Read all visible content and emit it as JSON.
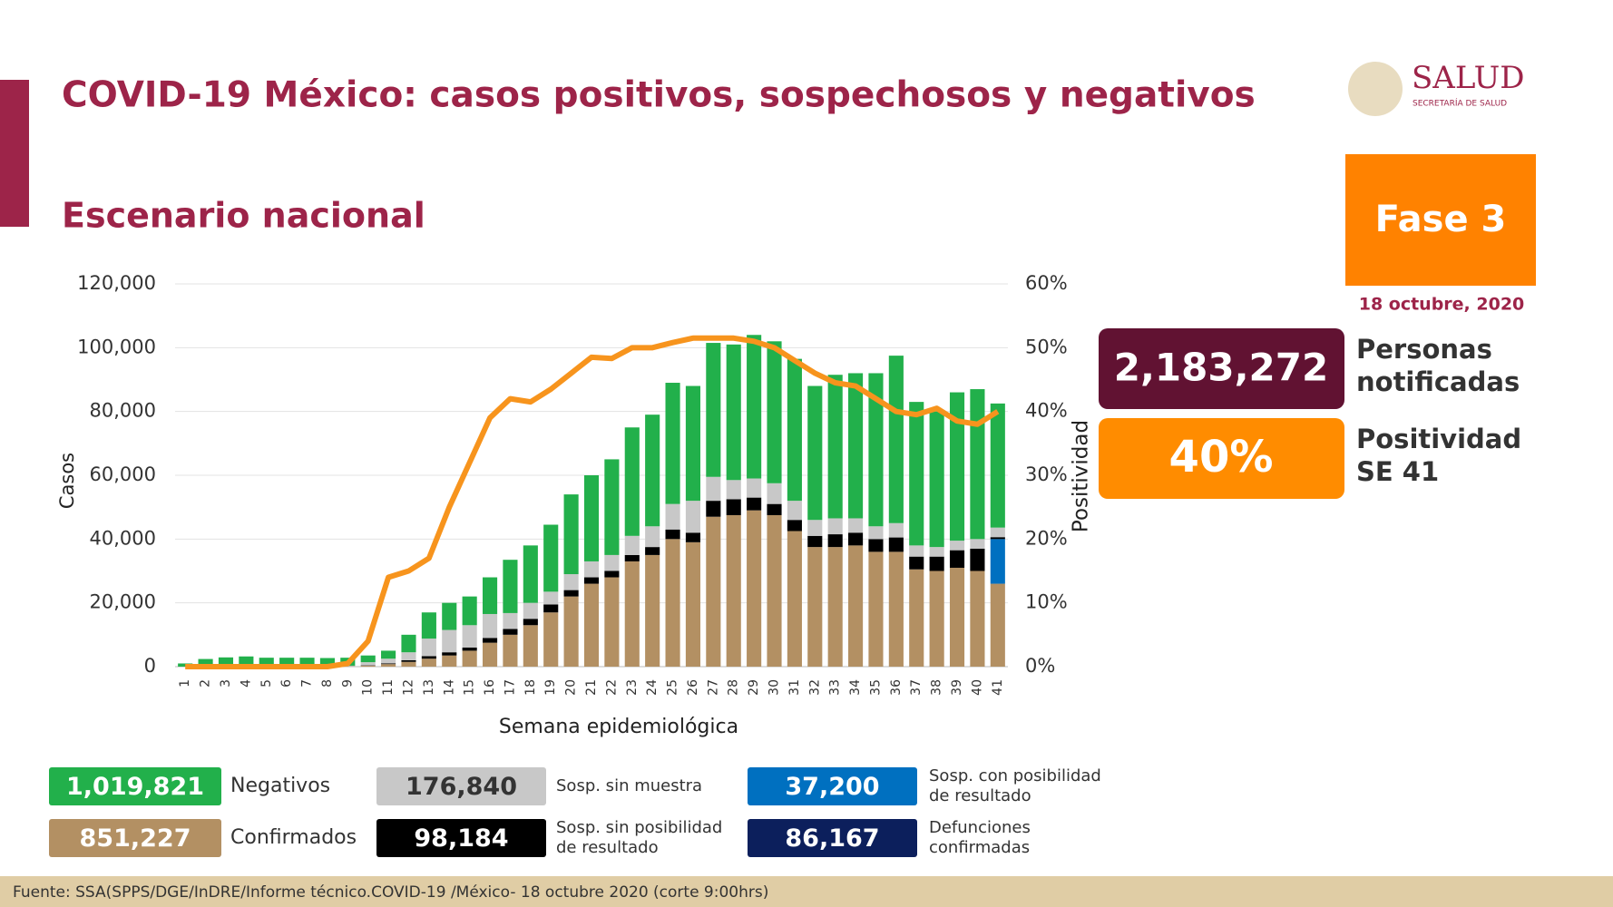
{
  "header": {
    "title": "COVID-19 México: casos positivos, sospechosos y negativos",
    "subtitle": "Escenario nacional",
    "logo": "SALUD",
    "logo_sub": "SECRETARÍA DE SALUD",
    "phase": "Fase 3",
    "date": "18 octubre, 2020"
  },
  "kpis": [
    {
      "value": "2,183,272",
      "label": [
        "Personas",
        "notificadas"
      ],
      "color": "#611232"
    },
    {
      "value": "40%",
      "label": [
        "Positividad",
        "SE 41"
      ],
      "color": "#ff8c00"
    }
  ],
  "extra_totals": [
    {
      "name": "Defunciones confirmadas",
      "total": "86,167",
      "color": "#0c1f5c"
    }
  ],
  "footer": "Fuente: SSA(SPPS/DGE/InDRE/Informe técnico.COVID-19 /México- 18 octubre 2020 (corte 9:00hrs)",
  "chart_data": {
    "type": "bar",
    "stacked": true,
    "categories": [
      "1",
      "2",
      "3",
      "4",
      "5",
      "6",
      "7",
      "8",
      "9",
      "10",
      "11",
      "12",
      "13",
      "14",
      "15",
      "16",
      "17",
      "18",
      "19",
      "20",
      "21",
      "22",
      "23",
      "24",
      "25",
      "26",
      "27",
      "28",
      "29",
      "30",
      "31",
      "32",
      "33",
      "34",
      "35",
      "36",
      "37",
      "38",
      "39",
      "40",
      "41"
    ],
    "xlabel": "Semana epidemiológica",
    "ylabel": "Casos",
    "y2label": "Positividad",
    "ylim": [
      0,
      120000
    ],
    "yticks": [
      0,
      {
        "value": 20000,
        "label": "20,000"
      },
      {
        "value": 40000,
        "label": "40,000"
      },
      {
        "value": 60000,
        "label": "60,000"
      },
      {
        "value": 80000,
        "label": "80,000"
      },
      {
        "value": 100000,
        "label": "100,000"
      },
      {
        "value": 120000,
        "label": "120,000"
      }
    ],
    "y2lim": [
      0,
      60
    ],
    "y2ticks": [
      {
        "value": 0,
        "label": "0%"
      },
      {
        "value": 10,
        "label": "10%"
      },
      {
        "value": 20,
        "label": "20%"
      },
      {
        "value": 30,
        "label": "30%"
      },
      {
        "value": 40,
        "label": "40%"
      },
      {
        "value": 50,
        "label": "50%"
      },
      {
        "value": 60,
        "label": "60%"
      }
    ],
    "series": [
      {
        "name": "Confirmados",
        "total": "851,227",
        "color": "#b39063",
        "values": [
          0,
          0,
          0,
          0,
          0,
          0,
          0,
          0,
          100,
          300,
          800,
          1500,
          2500,
          3500,
          5000,
          7500,
          10000,
          13000,
          17000,
          22000,
          26000,
          28000,
          33000,
          35000,
          40000,
          39000,
          47000,
          47500,
          49000,
          47500,
          42500,
          37500,
          37500,
          38000,
          36000,
          36000,
          30500,
          30000,
          31000,
          30000,
          26000
        ]
      },
      {
        "name": "Sosp. con posibilidad de resultado",
        "total": "37,200",
        "color": "#0070c0",
        "values": [
          0,
          0,
          0,
          0,
          0,
          0,
          0,
          0,
          0,
          0,
          0,
          0,
          0,
          0,
          0,
          0,
          0,
          0,
          0,
          0,
          0,
          0,
          0,
          0,
          0,
          0,
          0,
          0,
          0,
          0,
          0,
          0,
          0,
          0,
          0,
          0,
          0,
          0,
          0,
          0,
          14000
        ]
      },
      {
        "name": "Sosp. sin posibilidad de resultado",
        "total": "98,184",
        "color": "#000000",
        "values": [
          0,
          0,
          0,
          0,
          0,
          0,
          0,
          0,
          0,
          100,
          200,
          500,
          800,
          1000,
          1000,
          1500,
          1800,
          2000,
          2500,
          2000,
          2000,
          2000,
          2000,
          2500,
          3000,
          3000,
          5000,
          5000,
          4000,
          3500,
          3500,
          3500,
          4000,
          4000,
          4000,
          4500,
          4000,
          4500,
          5500,
          7000,
          600
        ]
      },
      {
        "name": "Sosp. sin muestra",
        "total": "176,840",
        "color": "#c8c8c8",
        "values": [
          0,
          0,
          100,
          100,
          100,
          100,
          100,
          100,
          200,
          1000,
          1500,
          2500,
          5500,
          7000,
          7000,
          7500,
          5000,
          5000,
          4000,
          5000,
          5000,
          5000,
          6000,
          6500,
          8000,
          10000,
          7500,
          6000,
          6000,
          6500,
          6000,
          5000,
          5000,
          4500,
          4000,
          4500,
          3500,
          3000,
          3000,
          3000,
          3000
        ]
      },
      {
        "name": "Negativos",
        "total": "1,019,821",
        "color": "#22b04b",
        "values": [
          1000,
          2400,
          2800,
          3100,
          2700,
          2700,
          2700,
          2600,
          2500,
          2100,
          2500,
          5500,
          8200,
          8500,
          9000,
          11500,
          16700,
          18000,
          21000,
          25000,
          27000,
          30000,
          34000,
          35000,
          38000,
          36000,
          42000,
          42500,
          45000,
          44500,
          44500,
          42000,
          45000,
          45500,
          48000,
          52500,
          45000,
          42500,
          46500,
          47000,
          38900
        ]
      },
      {
        "type": "line",
        "axis": "y2",
        "color": "#f7941d",
        "values": [
          0,
          0,
          0,
          0,
          0,
          0,
          0,
          0,
          0.5,
          4,
          14,
          15,
          17,
          25,
          32,
          39,
          42,
          41.5,
          43.5,
          46,
          48.5,
          48.3,
          50,
          50,
          50.8,
          51.5,
          51.5,
          51.5,
          51,
          50,
          48,
          46,
          44.5,
          44,
          42,
          40,
          39.5,
          40.5,
          38.5,
          38,
          40
        ]
      }
    ]
  }
}
